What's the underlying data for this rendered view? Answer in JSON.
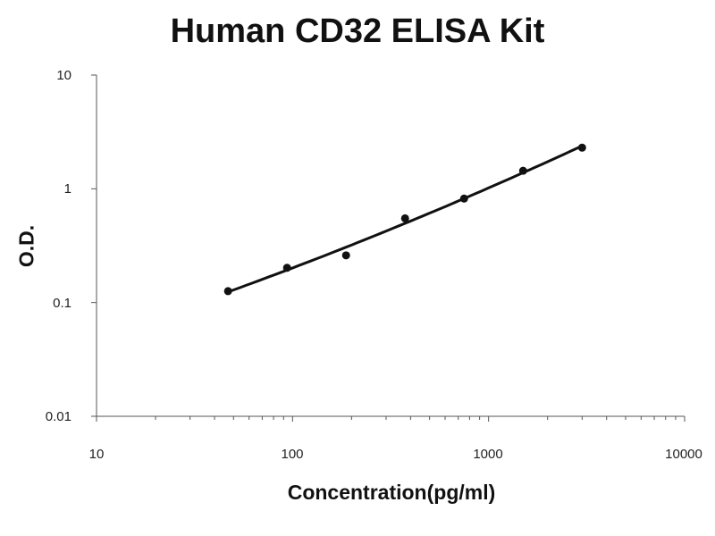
{
  "chart_data": {
    "type": "scatter",
    "title": "Human CD32 ELISA Kit",
    "xlabel": "Concentration(pg/ml)",
    "ylabel": "O.D.",
    "xscale": "log",
    "yscale": "log",
    "xlim": [
      10,
      10000
    ],
    "ylim": [
      0.01,
      10
    ],
    "xticks": [
      "10",
      "100",
      "1000",
      "10000"
    ],
    "yticks": [
      "0.01",
      "0.1",
      "1",
      "10"
    ],
    "grid": false,
    "trendline": "smooth fitted curve",
    "series": [
      {
        "x": [
          46.875,
          93.75,
          187.5,
          375,
          750,
          1500,
          3000
        ],
        "y": [
          0.126,
          0.202,
          0.26,
          0.55,
          0.82,
          1.44,
          2.3
        ]
      }
    ],
    "colors": {
      "points": "#111111",
      "line": "#111111",
      "axes": "#555555"
    }
  }
}
